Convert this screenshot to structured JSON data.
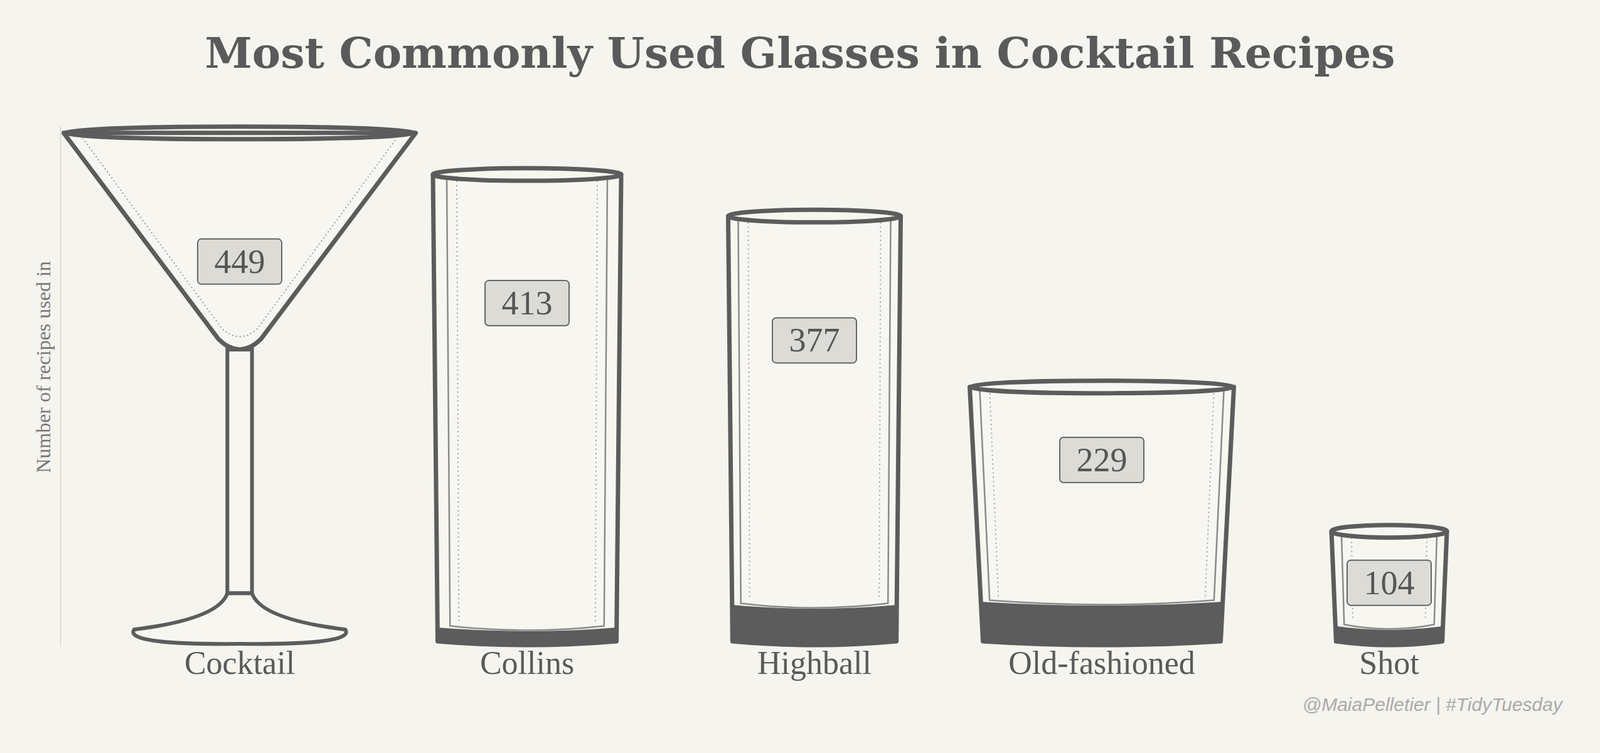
{
  "chart_data": {
    "type": "bar",
    "title": "Most Commonly Used Glasses in Cocktail Recipes",
    "y_label": "Number of recipes used in",
    "caption": "@MaiaPelletier | #TidyTuesday",
    "categories": [
      "Cocktail",
      "Collins",
      "Highball",
      "Old-fashioned",
      "Shot"
    ],
    "values": [
      449,
      413,
      377,
      229,
      104
    ],
    "color": "#5c5c5c",
    "ylim": [
      0,
      450
    ],
    "data_labels": true,
    "tick_labels": "x",
    "grid": false
  }
}
